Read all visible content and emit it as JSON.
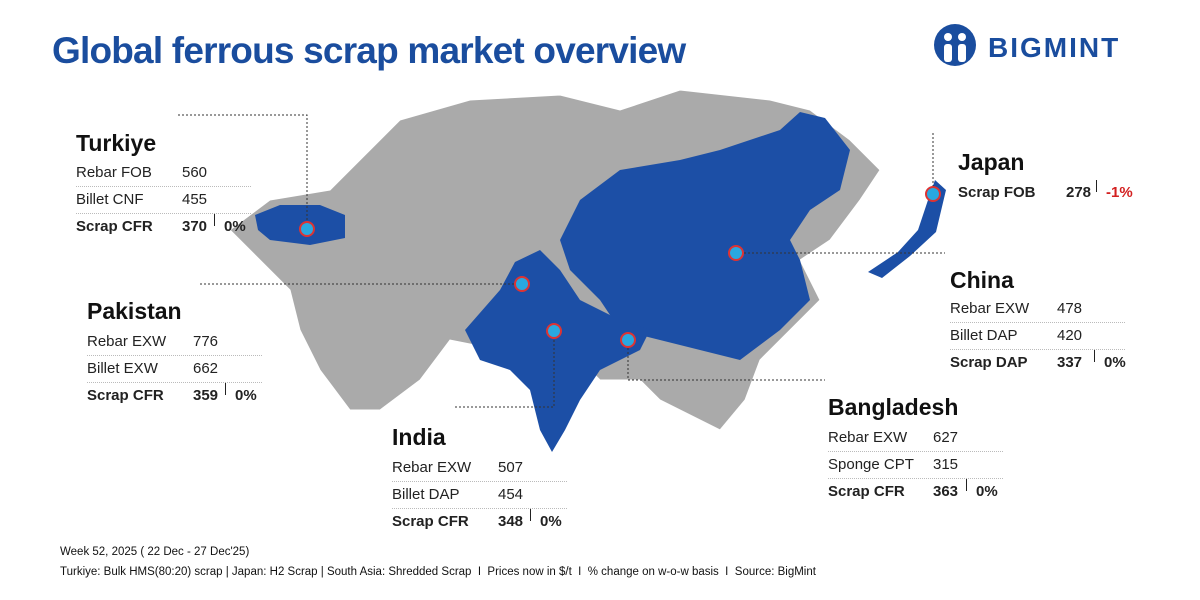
{
  "header": {
    "title": "Global ferrous scrap market overview",
    "logo": "BIGMINT"
  },
  "countries": [
    {
      "name": "Turkiye",
      "rows": [
        {
          "label": "Rebar FOB",
          "value": 560
        },
        {
          "label": "Billet CNF",
          "value": 455
        },
        {
          "label": "Scrap CFR",
          "value": 370,
          "change": "0%"
        }
      ]
    },
    {
      "name": "Pakistan",
      "rows": [
        {
          "label": "Rebar EXW",
          "value": 776
        },
        {
          "label": "Billet EXW",
          "value": 662
        },
        {
          "label": "Scrap CFR",
          "value": 359,
          "change": "0%"
        }
      ]
    },
    {
      "name": "India",
      "rows": [
        {
          "label": "Rebar EXW",
          "value": 507
        },
        {
          "label": "Billet DAP",
          "value": 454
        },
        {
          "label": "Scrap CFR",
          "value": 348,
          "change": "0%"
        }
      ]
    },
    {
      "name": "Bangladesh",
      "rows": [
        {
          "label": "Rebar EXW",
          "value": 627
        },
        {
          "label": "Sponge CPT",
          "value": 315
        },
        {
          "label": "Scrap CFR",
          "value": 363,
          "change": "0%"
        }
      ]
    },
    {
      "name": "China",
      "rows": [
        {
          "label": "Rebar EXW",
          "value": 478
        },
        {
          "label": "Billet DAP",
          "value": 420
        },
        {
          "label": "Scrap DAP",
          "value": 337,
          "change": "0%"
        }
      ]
    },
    {
      "name": "Japan",
      "rows": [
        {
          "label": "Scrap FOB",
          "value": 278,
          "change": "-1%"
        }
      ]
    }
  ],
  "footer": {
    "week": "Week 52, 2025 ( 22 Dec - 27 Dec'25)",
    "note": "Turkiye: Bulk HMS(80:20) scrap | Japan: H2 Scrap | South Asia: Shredded Scrap  I  Prices now in $/t  I  % change on w-o-w basis  I  Source: BigMint"
  }
}
